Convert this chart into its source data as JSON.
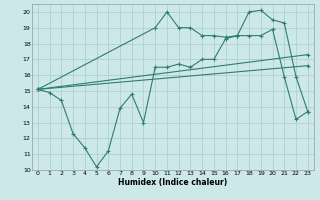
{
  "xlabel": "Humidex (Indice chaleur)",
  "background_color": "#cce8e8",
  "grid_color": "#b0d0d0",
  "line_color": "#2e7d6e",
  "xlim": [
    -0.5,
    23.5
  ],
  "ylim": [
    10,
    20.5
  ],
  "xticks": [
    0,
    1,
    2,
    3,
    4,
    5,
    6,
    7,
    8,
    9,
    10,
    11,
    12,
    13,
    14,
    15,
    16,
    17,
    18,
    19,
    20,
    21,
    22,
    23
  ],
  "yticks": [
    10,
    11,
    12,
    13,
    14,
    15,
    16,
    17,
    18,
    19,
    20
  ],
  "series": [
    {
      "x": [
        0,
        1,
        2,
        3,
        4,
        5,
        6,
        7,
        8,
        9,
        10,
        11,
        12,
        13,
        14,
        15,
        16,
        17,
        18,
        19,
        20,
        21,
        22,
        23
      ],
      "y": [
        15.1,
        14.9,
        14.4,
        12.3,
        11.4,
        10.2,
        11.2,
        13.9,
        14.8,
        13.0,
        16.5,
        16.5,
        16.7,
        16.5,
        17.0,
        17.0,
        18.3,
        18.5,
        18.5,
        18.5,
        18.9,
        15.9,
        13.2,
        13.7
      ]
    },
    {
      "x": [
        0,
        23
      ],
      "y": [
        15.1,
        17.3
      ]
    },
    {
      "x": [
        0,
        23
      ],
      "y": [
        15.1,
        16.6
      ]
    },
    {
      "x": [
        0,
        10,
        11,
        12,
        13,
        14,
        15,
        16,
        17,
        18,
        19,
        20,
        21,
        22,
        23
      ],
      "y": [
        15.1,
        19.0,
        20.0,
        19.0,
        19.0,
        18.5,
        18.5,
        18.4,
        18.5,
        20.0,
        20.1,
        19.5,
        19.3,
        15.9,
        13.7
      ]
    }
  ]
}
